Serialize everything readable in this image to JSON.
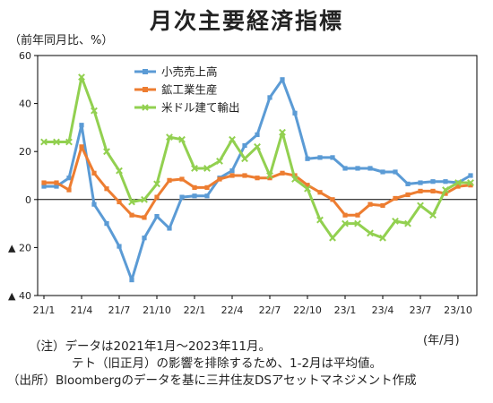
{
  "title": "月次主要経済指標",
  "unit_label": "（前年同月比、%）",
  "x_unit_label": "(年/月)",
  "notes": [
    "（注）データは2021年1月～2023年11月。",
    "テト（旧正月）の影響を排除するため、1-2月は平均値。",
    "（出所）Bloombergのデータを基に三井住友DSアセットマネジメント作成"
  ],
  "colors": {
    "retail": "#5b9bd5",
    "industrial": "#ed7d31",
    "exports": "#92d050",
    "axis": "#000000",
    "grid": "#d9d9d9"
  },
  "chart_data": {
    "type": "line",
    "title": "月次主要経済指標",
    "ylabel": "（前年同月比、%）",
    "xlabel": "(年/月)",
    "ylim": [
      -40,
      60
    ],
    "yticks": [
      60,
      40,
      20,
      0,
      -20,
      -40
    ],
    "ytick_labels": [
      "60",
      "40",
      "20",
      "0",
      "▲ 20",
      "▲ 40"
    ],
    "x_tick_labels": [
      "21/1",
      "21/4",
      "21/7",
      "21/10",
      "22/1",
      "22/4",
      "22/7",
      "22/10",
      "23/1",
      "23/4",
      "23/7",
      "23/10"
    ],
    "x": [
      "21/1",
      "21/2",
      "21/3",
      "21/4",
      "21/5",
      "21/6",
      "21/7",
      "21/8",
      "21/9",
      "21/10",
      "21/11",
      "21/12",
      "22/1",
      "22/2",
      "22/3",
      "22/4",
      "22/5",
      "22/6",
      "22/7",
      "22/8",
      "22/9",
      "22/10",
      "22/11",
      "22/12",
      "23/1",
      "23/2",
      "23/3",
      "23/4",
      "23/5",
      "23/6",
      "23/7",
      "23/8",
      "23/9",
      "23/10",
      "23/11"
    ],
    "legend_position": "top-center",
    "grid": false,
    "series": [
      {
        "name": "小売売上高",
        "color": "#5b9bd5",
        "values": [
          5.5,
          5.5,
          9,
          31,
          -2,
          -10,
          -19.5,
          -33.5,
          -16,
          -7,
          -12,
          1,
          1.5,
          1.5,
          9,
          12,
          22.5,
          27,
          42.5,
          50,
          36,
          17,
          17.5,
          17.5,
          13,
          13,
          13,
          11.5,
          11.5,
          6.5,
          7,
          7.5,
          7.5,
          7,
          10
        ]
      },
      {
        "name": "鉱工業生産",
        "color": "#ed7d31",
        "values": [
          7,
          7,
          4,
          22,
          11,
          4.5,
          -1,
          -6.5,
          -7.5,
          1,
          8,
          8.5,
          5,
          5,
          8.5,
          10,
          10,
          9,
          9,
          11,
          10,
          6,
          3,
          0,
          -6.5,
          -6.5,
          -2,
          -2.5,
          0.5,
          2,
          3.5,
          3.5,
          2.5,
          5.5,
          6
        ]
      },
      {
        "name": "米ドル建て輸出",
        "color": "#92d050",
        "values": [
          24,
          24,
          24,
          51,
          37,
          20,
          12,
          -1,
          0,
          6.5,
          26,
          25,
          13,
          13,
          16,
          25,
          17,
          22,
          10,
          28,
          8.5,
          4.5,
          -8.5,
          -16,
          -10,
          -10,
          -14,
          -16,
          -9,
          -10,
          -2.5,
          -6.5,
          4,
          7,
          7
        ]
      }
    ]
  }
}
